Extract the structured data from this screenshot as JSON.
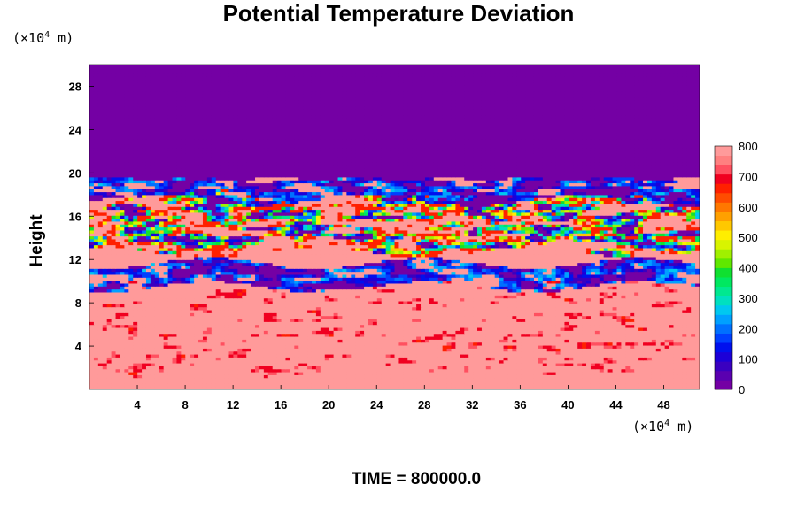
{
  "chart_data": {
    "type": "heatmap",
    "title": "Potential Temperature Deviation",
    "ylabel": "Height",
    "x_unit_label": {
      "prefix": "(×10",
      "exp": "4",
      "suffix": " m)"
    },
    "y_unit_label": {
      "prefix": "(×10",
      "exp": "4",
      "suffix": " m)"
    },
    "time_label": "TIME = 800000.0",
    "xlim": [
      0,
      51
    ],
    "ylim": [
      0,
      30
    ],
    "x_ticks": [
      4,
      8,
      12,
      16,
      20,
      24,
      28,
      32,
      36,
      40,
      44,
      48
    ],
    "y_ticks": [
      4,
      8,
      12,
      16,
      20,
      24,
      28
    ],
    "colorbar": {
      "min": 0,
      "max": 800,
      "tick_values": [
        0,
        100,
        200,
        300,
        400,
        500,
        600,
        700,
        800
      ],
      "colors": [
        "#7400a4",
        "#5a00b0",
        "#3a00c0",
        "#1c00d8",
        "#0010ee",
        "#0040ff",
        "#0070ff",
        "#00a0ff",
        "#00c8f0",
        "#00e0c0",
        "#00e890",
        "#00e860",
        "#10e030",
        "#60e800",
        "#a0f000",
        "#d8f400",
        "#ffee00",
        "#ffc800",
        "#ffa000",
        "#ff7800",
        "#ff4c00",
        "#ff2000",
        "#f00020",
        "#ff5060",
        "#ff8080",
        "#ff9a9a"
      ]
    },
    "fields": {
      "background_value": 780,
      "top_layer": {
        "value": 0,
        "y_from": 19.5,
        "y_to": 30
      },
      "transition_bands_y": [
        {
          "y_center": 18.6,
          "dominant": "low"
        },
        {
          "y_center": 17.0,
          "dominant": "mixed"
        },
        {
          "y_center": 15.4,
          "dominant": "mixed"
        },
        {
          "y_center": 13.8,
          "dominant": "mixed"
        },
        {
          "y_center": 10.6,
          "dominant": "low"
        }
      ],
      "warm_streaks": "scattered high values (600-700) below y=10"
    }
  }
}
